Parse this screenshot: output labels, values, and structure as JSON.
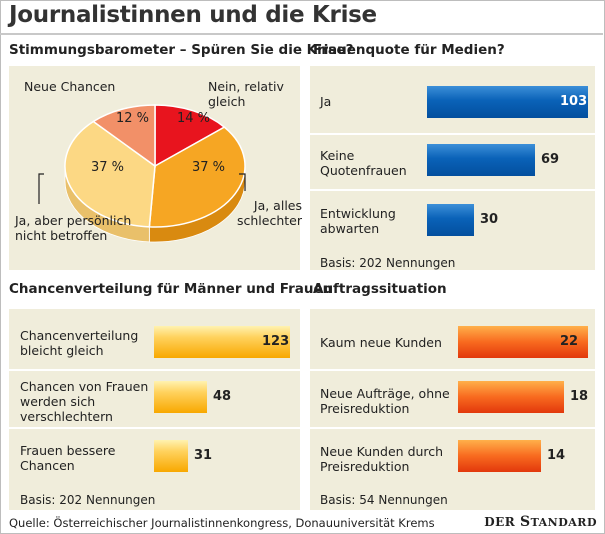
{
  "title": "Journalistinnen und die Krise",
  "footer": {
    "source": "Quelle: Österreichischer Journalistinnenkongress, Donauuniversität Krems",
    "logo": "DER STANDARD"
  },
  "chart_data": [
    {
      "type": "pie",
      "title": "Stimmungsbarometer – Spüren Sie die Krise?",
      "slices": [
        {
          "label": "Nein, relativ gleich",
          "value": 14,
          "display": "14 %",
          "color": "#e8141e"
        },
        {
          "label": "Ja, alles schlechter",
          "value": 37,
          "display": "37 %",
          "color": "#f6a623"
        },
        {
          "label": "Ja, aber persönlich nicht betroffen",
          "value": 37,
          "display": "37 %",
          "color": "#fcd884"
        },
        {
          "label": "Neue Chancen",
          "value": 12,
          "display": "12 %",
          "color": "#f29068"
        }
      ],
      "labels": {
        "nein": "Nein, relativ gleich",
        "schlechter": "Ja, alles schlechter",
        "nicht": "Ja, aber persönlich nicht betroffen",
        "chancen": "Neue Chancen"
      }
    },
    {
      "type": "bar",
      "title": "Frauenquote für Medien?",
      "categories": [
        "Ja",
        "Keine Quotenfrauen",
        "Entwicklung abwarten"
      ],
      "values": [
        103,
        69,
        30
      ],
      "max": 103,
      "note": "Basis: 202 Nennungen",
      "color": "#0a62b8"
    },
    {
      "type": "bar",
      "title": "Chancenverteilung für Männer und Frauen",
      "categories": [
        "Chancenverteilung bleicht gleich",
        "Chancen von Frauen werden sich verschlechtern",
        "Frauen bessere Chancen"
      ],
      "values": [
        123,
        48,
        31
      ],
      "max": 123,
      "note": "Basis: 202 Nennungen",
      "color": "#ffc233"
    },
    {
      "type": "bar",
      "title": "Auftragssituation",
      "categories": [
        "Kaum neue Kunden",
        "Neue Aufträge, ohne Preisreduktion",
        "Neue Kunden durch Preisreduktion"
      ],
      "values": [
        22,
        18,
        14
      ],
      "max": 22,
      "note": "Basis: 54 Nennungen",
      "color": "#f05a1a"
    }
  ]
}
